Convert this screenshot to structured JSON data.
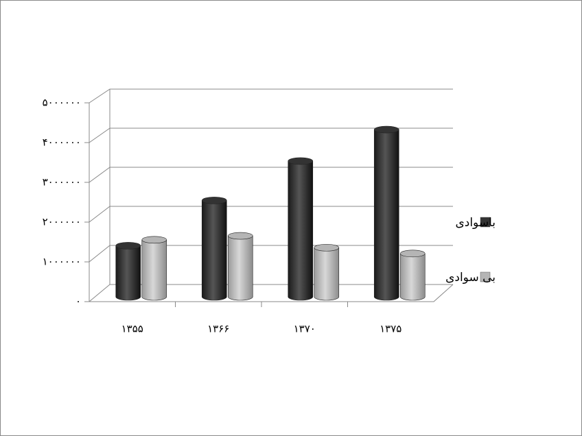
{
  "chart_data": {
    "type": "bar3d",
    "categories": [
      "۱۳۵۵",
      "۱۳۶۶",
      "۱۳۷۰",
      "۱۳۷۵"
    ],
    "series": [
      {
        "name": "باسوادی",
        "color": "#333333",
        "values": [
          1300000,
          2450000,
          3450000,
          4250000
        ]
      },
      {
        "name": "بی سوادی",
        "color": "#b5b5b5",
        "values": [
          1450000,
          1550000,
          1250000,
          1100000
        ]
      }
    ],
    "ylim": [
      0,
      5000000
    ],
    "yticks": [
      {
        "value": 0,
        "label": "۰"
      },
      {
        "value": 1000000,
        "label": "۱۰۰۰۰۰۰"
      },
      {
        "value": 2000000,
        "label": "۲۰۰۰۰۰۰"
      },
      {
        "value": 3000000,
        "label": "۳۰۰۰۰۰۰"
      },
      {
        "value": 4000000,
        "label": "۴۰۰۰۰۰۰"
      },
      {
        "value": 5000000,
        "label": "۵۰۰۰۰۰۰"
      }
    ],
    "grid": true,
    "legend": "right"
  }
}
